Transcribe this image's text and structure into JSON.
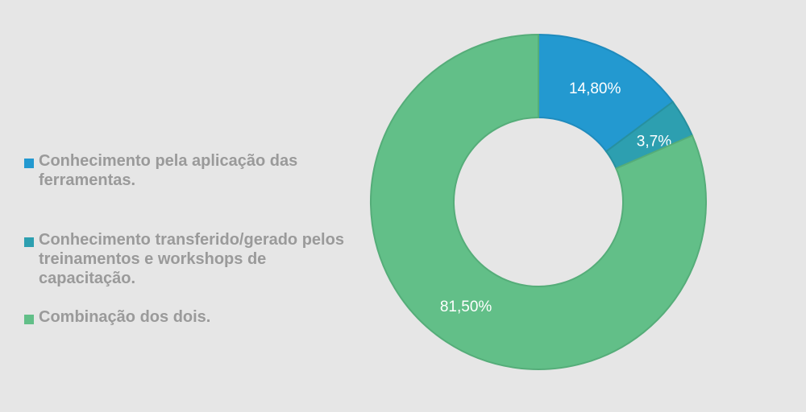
{
  "colors": {
    "background": "#e6e6e6",
    "legend_text": "#9a9a9a",
    "series": [
      "#2399d0",
      "#2d9fb0",
      "#62bf88"
    ]
  },
  "chart_data": {
    "type": "pie",
    "donut": true,
    "title": "",
    "categories": [
      "Conhecimento pela aplicação das ferramentas.",
      "Conhecimento transferido/gerado pelos treinamentos e workshops de capacitação.",
      "Combinação dos dois."
    ],
    "values": [
      14.8,
      3.7,
      81.5
    ],
    "data_labels": [
      "14,80%",
      "3,7%",
      "81,50%"
    ],
    "legend_position": "left"
  }
}
